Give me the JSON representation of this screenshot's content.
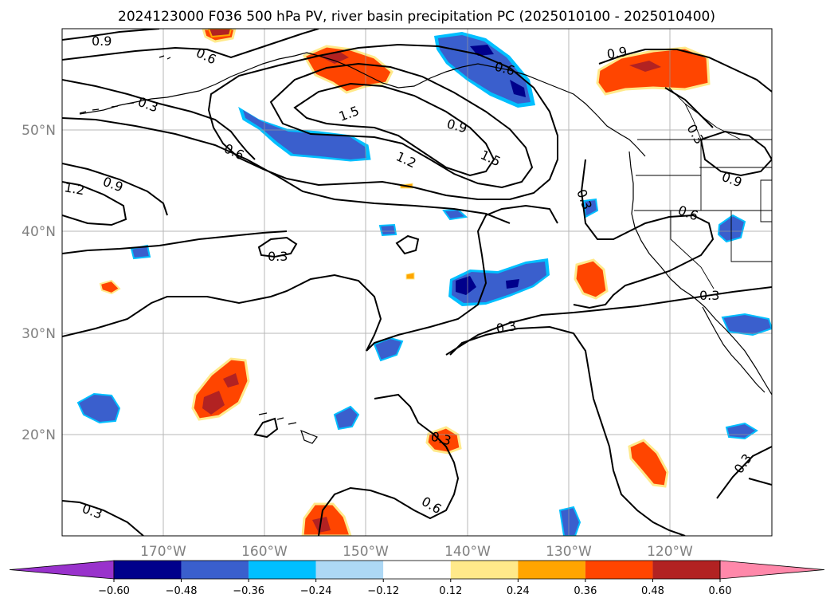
{
  "title": "2024123000 F036 500 hPa PV, river basin precipitation PC (2025010100 - 2025010400)",
  "map": {
    "latitude_labels": [
      "50°N",
      "40°N",
      "30°N",
      "20°N"
    ],
    "longitude_labels": [
      "170°W",
      "160°W",
      "150°W",
      "140°W",
      "130°W",
      "120°W"
    ],
    "contour_labels": [
      "0.9",
      "0.6",
      "0.3",
      "1.5",
      "0.9",
      "1.2",
      "1.5",
      "0.6",
      "1.2",
      "0.9",
      "0.3",
      "0.3",
      "0.9",
      "0.6",
      "0.9",
      "0.3",
      "0.6",
      "0.3",
      "0.3",
      "0.3",
      "0.6",
      "0.3",
      "0.3"
    ]
  },
  "colorbar": {
    "tick_labels": [
      "−0.60",
      "−0.48",
      "−0.36",
      "−0.24",
      "−0.12",
      "0.12",
      "0.24",
      "0.36",
      "0.48",
      "0.60"
    ],
    "colors": [
      "#9932cc",
      "#00008b",
      "#3a5fcd",
      "#00bfff",
      "#add8f5",
      "#ffffff",
      "#ffe98a",
      "#ffa500",
      "#ff4500",
      "#b22222",
      "#ff88aa"
    ]
  },
  "palette": {
    "neg_strong": "#00008b",
    "neg_mid": "#3a5fcd",
    "neg_light": "#00bfff",
    "neg_faint": "#add8f5",
    "pos_faint": "#ffe98a",
    "pos_light": "#ffa500",
    "pos_mid": "#ff4500",
    "pos_strong": "#b22222"
  }
}
